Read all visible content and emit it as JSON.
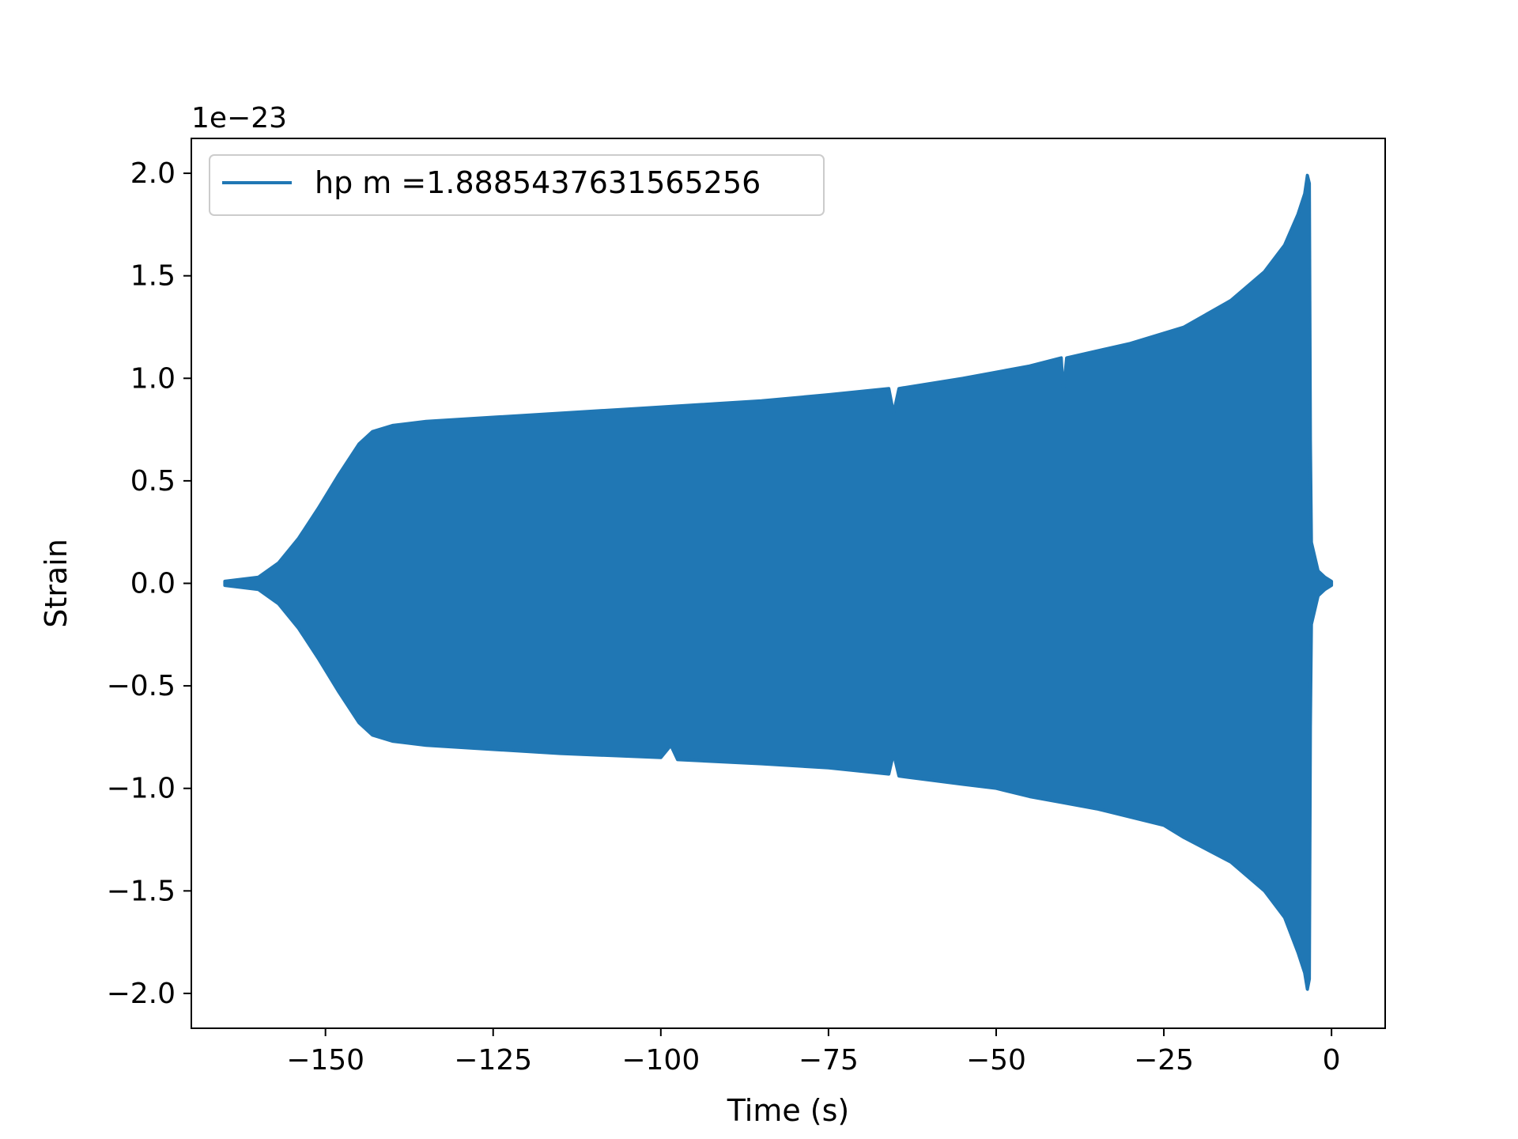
{
  "chart_data": {
    "type": "area",
    "title": "",
    "xlabel": "Time (s)",
    "ylabel": "Strain",
    "y_offset_label": "1e−23",
    "xlim": [
      -170,
      8
    ],
    "ylim": [
      -2.17,
      2.17
    ],
    "x_ticks": [
      -150,
      -125,
      -100,
      -75,
      -50,
      -25,
      0
    ],
    "x_tick_labels": [
      "−150",
      "−125",
      "−100",
      "−75",
      "−50",
      "−25",
      "0"
    ],
    "y_ticks": [
      -2.0,
      -1.5,
      -1.0,
      -0.5,
      0.0,
      0.5,
      1.0,
      1.5,
      2.0
    ],
    "y_tick_labels": [
      "−2.0",
      "−1.5",
      "−1.0",
      "−0.5",
      "0.0",
      "0.5",
      "1.0",
      "1.5",
      "2.0"
    ],
    "grid": false,
    "legend_position": "upper-left",
    "series": [
      {
        "name": "hp m =1.8885437631565256",
        "color": "#2077b4",
        "description_envelope_upper": [
          [
            -165,
            0.01
          ],
          [
            -160,
            0.03
          ],
          [
            -157,
            0.1
          ],
          [
            -154,
            0.22
          ],
          [
            -151,
            0.37
          ],
          [
            -148,
            0.53
          ],
          [
            -145,
            0.68
          ],
          [
            -143,
            0.74
          ],
          [
            -140,
            0.77
          ],
          [
            -135,
            0.79
          ],
          [
            -125,
            0.81
          ],
          [
            -115,
            0.83
          ],
          [
            -105,
            0.85
          ],
          [
            -95,
            0.87
          ],
          [
            -85,
            0.89
          ],
          [
            -75,
            0.92
          ],
          [
            -66,
            0.95
          ],
          [
            -65.3,
            0.83
          ],
          [
            -64.5,
            0.95
          ],
          [
            -55,
            1.0
          ],
          [
            -45,
            1.06
          ],
          [
            -40.3,
            1.1
          ],
          [
            -40.0,
            0.93
          ],
          [
            -39.5,
            1.1
          ],
          [
            -30,
            1.17
          ],
          [
            -22,
            1.25
          ],
          [
            -15,
            1.38
          ],
          [
            -10,
            1.52
          ],
          [
            -7,
            1.65
          ],
          [
            -5,
            1.8
          ],
          [
            -4,
            1.9
          ],
          [
            -3.6,
            1.99
          ],
          [
            -3.3,
            1.95
          ],
          [
            -3.15,
            0.7
          ],
          [
            -3.0,
            0.2
          ],
          [
            -2.0,
            0.06
          ],
          [
            -1.0,
            0.03
          ],
          [
            0,
            0.01
          ]
        ],
        "description_envelope_lower": [
          [
            -165,
            -0.01
          ],
          [
            -160,
            -0.03
          ],
          [
            -157,
            -0.1
          ],
          [
            -154,
            -0.22
          ],
          [
            -151,
            -0.37
          ],
          [
            -148,
            -0.53
          ],
          [
            -145,
            -0.68
          ],
          [
            -143,
            -0.74
          ],
          [
            -140,
            -0.77
          ],
          [
            -135,
            -0.79
          ],
          [
            -125,
            -0.81
          ],
          [
            -115,
            -0.83
          ],
          [
            -100,
            -0.85
          ],
          [
            -98.5,
            -0.79
          ],
          [
            -97.5,
            -0.86
          ],
          [
            -85,
            -0.88
          ],
          [
            -75,
            -0.9
          ],
          [
            -66,
            -0.93
          ],
          [
            -65.3,
            -0.83
          ],
          [
            -64.5,
            -0.94
          ],
          [
            -55,
            -0.98
          ],
          [
            -50,
            -1.0
          ],
          [
            -45,
            -1.04
          ],
          [
            -35,
            -1.1
          ],
          [
            -25,
            -1.18
          ],
          [
            -22,
            -1.24
          ],
          [
            -15,
            -1.36
          ],
          [
            -10,
            -1.5
          ],
          [
            -7,
            -1.63
          ],
          [
            -5,
            -1.8
          ],
          [
            -4,
            -1.9
          ],
          [
            -3.6,
            -1.98
          ],
          [
            -3.3,
            -1.93
          ],
          [
            -3.15,
            -0.7
          ],
          [
            -3.0,
            -0.2
          ],
          [
            -2.0,
            -0.06
          ],
          [
            -1.0,
            -0.03
          ],
          [
            0,
            -0.01
          ]
        ]
      }
    ]
  }
}
